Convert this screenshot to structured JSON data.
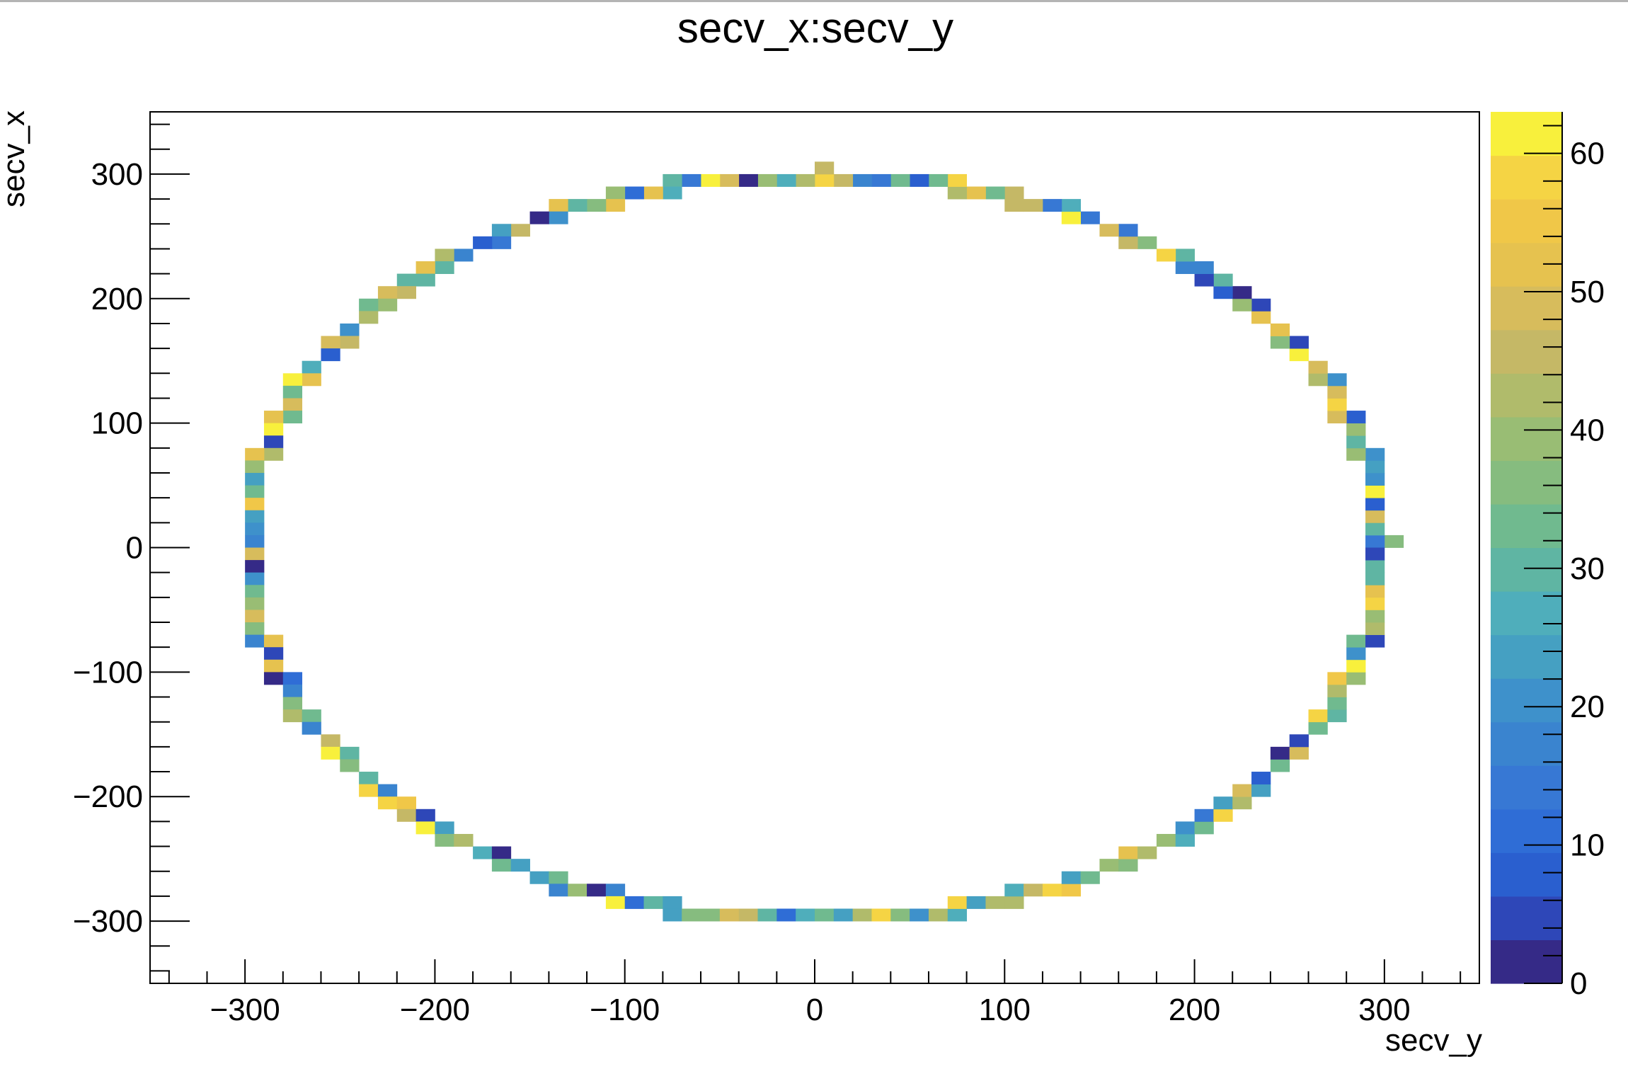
{
  "chart_data": {
    "type": "heatmap",
    "title": "secv_x:secv_y",
    "xlabel": "secv_y",
    "ylabel": "secv_x",
    "xlim": [
      -350,
      350
    ],
    "ylim": [
      -350,
      350
    ],
    "zlim": [
      0,
      63
    ],
    "x_ticks": [
      -300,
      -200,
      -100,
      0,
      100,
      200,
      300
    ],
    "y_ticks": [
      -300,
      -200,
      -100,
      0,
      100,
      200,
      300
    ],
    "z_ticks": [
      0,
      10,
      20,
      30,
      40,
      50,
      60
    ],
    "bin_width": 10,
    "ring_radius": 300,
    "grid": false,
    "legend": "color scale on the right",
    "palette": [
      "#352a87",
      "#2e47b8",
      "#2a5fcf",
      "#2f6dd6",
      "#3778d4",
      "#3a84cf",
      "#3e91cb",
      "#45a0c2",
      "#4faebb",
      "#5fb5a3",
      "#70ba8f",
      "#86bc7f",
      "#99bd74",
      "#b0bb6b",
      "#c5b866",
      "#d7bc5c",
      "#e6c24f",
      "#f0c748",
      "#f5d444",
      "#f8f03c"
    ],
    "annotation": "ring of occupied bins of radius 300 centred on the origin; each bin filled with counts 0–63"
  }
}
